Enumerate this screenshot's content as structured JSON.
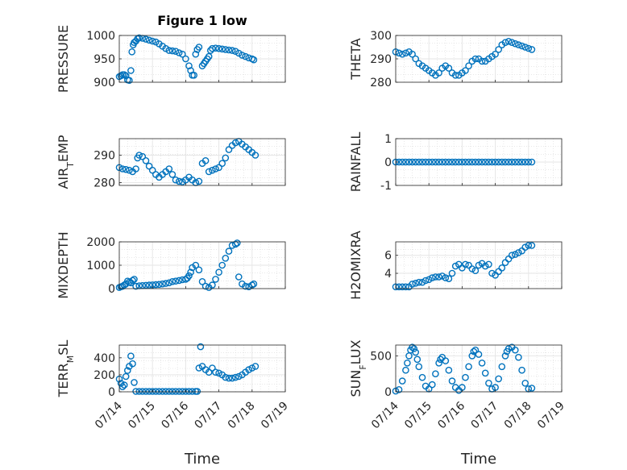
{
  "figure": {
    "title": "Figure 1 low",
    "xlabel": "Time"
  },
  "colors": {
    "marker": "#0072BD",
    "axis": "#262626",
    "grid": "#e6e6e6",
    "minor_grid": "#d9d9d9"
  },
  "chart_data": [
    {
      "type": "scatter",
      "ylabel": "PRESSURE",
      "xlim": [
        "07/14",
        "07/19"
      ],
      "ylim": [
        900,
        1000
      ],
      "yticks": [
        900,
        950,
        1000
      ],
      "x": [
        0.0,
        0.05,
        0.1,
        0.15,
        0.2,
        0.25,
        0.3,
        0.35,
        0.38,
        0.42,
        0.45,
        0.5,
        0.55,
        0.6,
        0.7,
        0.8,
        0.9,
        1.0,
        1.1,
        1.2,
        1.3,
        1.4,
        1.5,
        1.6,
        1.7,
        1.8,
        1.9,
        2.0,
        2.1,
        2.15,
        2.2,
        2.25,
        2.3,
        2.35,
        2.4,
        2.5,
        2.55,
        2.6,
        2.65,
        2.7,
        2.75,
        2.8,
        2.9,
        3.0,
        3.1,
        3.2,
        3.3,
        3.4,
        3.5,
        3.6,
        3.7,
        3.8,
        3.9,
        4.0,
        4.05
      ],
      "y": [
        912,
        914,
        916,
        916,
        914,
        905,
        904,
        925,
        965,
        980,
        985,
        988,
        993,
        995,
        994,
        992,
        990,
        988,
        986,
        982,
        977,
        972,
        968,
        967,
        966,
        963,
        960,
        950,
        935,
        925,
        915,
        915,
        960,
        970,
        975,
        935,
        940,
        945,
        950,
        955,
        968,
        972,
        973,
        972,
        971,
        970,
        969,
        968,
        966,
        962,
        958,
        955,
        952,
        950,
        948
      ]
    },
    {
      "type": "scatter",
      "ylabel": "THETA",
      "xlim": [
        "07/14",
        "07/19"
      ],
      "ylim": [
        280,
        300
      ],
      "yticks": [
        280,
        290,
        300
      ],
      "x": [
        0.0,
        0.1,
        0.2,
        0.3,
        0.4,
        0.5,
        0.6,
        0.7,
        0.8,
        0.9,
        1.0,
        1.1,
        1.2,
        1.3,
        1.4,
        1.5,
        1.6,
        1.7,
        1.8,
        1.9,
        2.0,
        2.1,
        2.2,
        2.3,
        2.4,
        2.5,
        2.6,
        2.7,
        2.8,
        2.9,
        3.0,
        3.1,
        3.2,
        3.3,
        3.4,
        3.5,
        3.6,
        3.7,
        3.8,
        3.9,
        4.0,
        4.1
      ],
      "y": [
        293,
        292.5,
        292,
        292.5,
        293,
        292,
        290,
        288,
        287,
        286,
        285,
        284,
        283,
        284,
        286,
        287,
        286,
        284,
        283,
        283,
        284,
        285,
        287,
        289,
        290,
        290,
        289,
        289,
        290,
        291,
        292,
        294,
        296,
        297,
        297.5,
        297,
        296.5,
        296,
        295.5,
        295,
        294.5,
        294
      ]
    },
    {
      "type": "scatter",
      "ylabel": "AIR_TEMP",
      "xlim": [
        "07/14",
        "07/19"
      ],
      "ylim": [
        279,
        296
      ],
      "yticks": [
        280,
        290
      ],
      "x": [
        0.0,
        0.1,
        0.2,
        0.3,
        0.4,
        0.5,
        0.55,
        0.6,
        0.7,
        0.8,
        0.9,
        1.0,
        1.1,
        1.2,
        1.3,
        1.4,
        1.5,
        1.6,
        1.7,
        1.8,
        1.9,
        2.0,
        2.1,
        2.2,
        2.3,
        2.4,
        2.5,
        2.6,
        2.7,
        2.8,
        2.9,
        3.0,
        3.1,
        3.2,
        3.3,
        3.4,
        3.5,
        3.6,
        3.7,
        3.8,
        3.9,
        4.0,
        4.1
      ],
      "y": [
        285.5,
        285,
        284.8,
        284.5,
        284,
        285,
        289,
        290,
        289.5,
        288,
        286,
        284.5,
        283,
        282,
        283,
        284,
        285,
        283,
        281,
        280.5,
        280.3,
        281,
        282,
        281,
        280,
        280.5,
        287,
        288,
        284,
        284.5,
        285,
        285.5,
        287,
        289,
        292,
        293.5,
        294.5,
        295,
        294,
        293,
        292,
        291,
        290
      ]
    },
    {
      "type": "scatter",
      "ylabel": "RAINFALL",
      "xlim": [
        "07/14",
        "07/19"
      ],
      "ylim": [
        -1,
        1
      ],
      "yticks": [
        -1,
        0,
        1
      ],
      "x": [
        0.0,
        0.1,
        0.2,
        0.3,
        0.4,
        0.5,
        0.6,
        0.7,
        0.8,
        0.9,
        1.0,
        1.1,
        1.2,
        1.3,
        1.4,
        1.5,
        1.6,
        1.7,
        1.8,
        1.9,
        2.0,
        2.1,
        2.2,
        2.3,
        2.4,
        2.5,
        2.6,
        2.7,
        2.8,
        2.9,
        3.0,
        3.1,
        3.2,
        3.3,
        3.4,
        3.5,
        3.6,
        3.7,
        3.8,
        3.9,
        4.0,
        4.1
      ],
      "y": [
        0,
        0,
        0,
        0,
        0,
        0,
        0,
        0,
        0,
        0,
        0,
        0,
        0,
        0,
        0,
        0,
        0,
        0,
        0,
        0,
        0,
        0,
        0,
        0,
        0,
        0,
        0,
        0,
        0,
        0,
        0,
        0,
        0,
        0,
        0,
        0,
        0,
        0,
        0,
        0,
        0,
        0
      ]
    },
    {
      "type": "scatter",
      "ylabel": "MIXDEPTH",
      "xlim": [
        "07/14",
        "07/19"
      ],
      "ylim": [
        0,
        2000
      ],
      "yticks": [
        0,
        1000,
        2000
      ],
      "x": [
        0.0,
        0.05,
        0.1,
        0.15,
        0.2,
        0.25,
        0.3,
        0.35,
        0.4,
        0.45,
        0.5,
        0.6,
        0.7,
        0.8,
        0.9,
        1.0,
        1.1,
        1.2,
        1.3,
        1.4,
        1.5,
        1.6,
        1.7,
        1.8,
        1.9,
        2.0,
        2.05,
        2.1,
        2.15,
        2.2,
        2.3,
        2.4,
        2.5,
        2.6,
        2.7,
        2.8,
        2.9,
        3.0,
        3.1,
        3.2,
        3.3,
        3.4,
        3.5,
        3.55,
        3.6,
        3.7,
        3.8,
        3.9,
        4.0,
        4.05
      ],
      "y": [
        50,
        80,
        100,
        150,
        200,
        320,
        280,
        250,
        350,
        400,
        100,
        120,
        130,
        140,
        150,
        160,
        170,
        180,
        200,
        220,
        250,
        300,
        320,
        350,
        380,
        400,
        450,
        550,
        700,
        900,
        1000,
        800,
        300,
        100,
        50,
        150,
        400,
        700,
        1000,
        1300,
        1600,
        1850,
        1900,
        1950,
        500,
        200,
        100,
        80,
        150,
        200
      ]
    },
    {
      "type": "scatter",
      "ylabel": "H2OMIXRA",
      "xlim": [
        "07/14",
        "07/19"
      ],
      "ylim": [
        2.3,
        7.5
      ],
      "yticks": [
        4,
        6
      ],
      "x": [
        0.0,
        0.1,
        0.2,
        0.3,
        0.4,
        0.5,
        0.6,
        0.7,
        0.8,
        0.9,
        1.0,
        1.1,
        1.2,
        1.3,
        1.4,
        1.5,
        1.6,
        1.7,
        1.8,
        1.9,
        2.0,
        2.1,
        2.2,
        2.3,
        2.4,
        2.5,
        2.6,
        2.7,
        2.8,
        2.9,
        3.0,
        3.1,
        3.2,
        3.3,
        3.4,
        3.5,
        3.6,
        3.7,
        3.8,
        3.9,
        4.0,
        4.1
      ],
      "y": [
        2.5,
        2.5,
        2.5,
        2.5,
        2.5,
        2.8,
        2.9,
        3.0,
        3.0,
        3.2,
        3.3,
        3.5,
        3.6,
        3.6,
        3.7,
        3.5,
        3.4,
        4.0,
        4.8,
        5.0,
        4.6,
        5.0,
        4.9,
        4.5,
        4.3,
        4.9,
        5.1,
        4.8,
        5.0,
        4.0,
        3.8,
        4.2,
        4.6,
        5.2,
        5.6,
        6.0,
        6.1,
        6.3,
        6.5,
        6.9,
        7.1,
        7.1
      ]
    },
    {
      "type": "scatter",
      "ylabel": "TERR_MSL",
      "xlim": [
        "07/14",
        "07/19"
      ],
      "ylim": [
        0,
        550
      ],
      "yticks": [
        0,
        200,
        400
      ],
      "x": [
        0.0,
        0.05,
        0.1,
        0.15,
        0.2,
        0.25,
        0.3,
        0.35,
        0.4,
        0.45,
        0.5,
        0.6,
        0.7,
        0.8,
        0.9,
        1.0,
        1.1,
        1.2,
        1.3,
        1.4,
        1.5,
        1.6,
        1.7,
        1.8,
        1.9,
        2.0,
        2.1,
        2.2,
        2.3,
        2.35,
        2.4,
        2.45,
        2.5,
        2.6,
        2.7,
        2.8,
        2.9,
        3.0,
        3.1,
        3.2,
        3.3,
        3.4,
        3.5,
        3.6,
        3.7,
        3.8,
        3.9,
        4.0,
        4.1
      ],
      "y": [
        150,
        100,
        60,
        80,
        180,
        250,
        300,
        420,
        330,
        110,
        5,
        5,
        5,
        5,
        5,
        5,
        5,
        5,
        5,
        5,
        5,
        5,
        5,
        5,
        5,
        5,
        5,
        5,
        5,
        5,
        280,
        530,
        300,
        260,
        230,
        280,
        230,
        220,
        200,
        170,
        160,
        160,
        170,
        180,
        200,
        230,
        260,
        280,
        300
      ]
    },
    {
      "type": "scatter",
      "ylabel": "SUN_FLUX",
      "xlim": [
        "07/14",
        "07/19"
      ],
      "ylim": [
        0,
        650
      ],
      "yticks": [
        0,
        500
      ],
      "x": [
        0.0,
        0.1,
        0.2,
        0.3,
        0.35,
        0.4,
        0.45,
        0.5,
        0.55,
        0.6,
        0.65,
        0.7,
        0.8,
        0.9,
        1.0,
        1.1,
        1.2,
        1.3,
        1.35,
        1.4,
        1.5,
        1.6,
        1.7,
        1.8,
        1.9,
        2.0,
        2.1,
        2.2,
        2.3,
        2.35,
        2.4,
        2.5,
        2.6,
        2.7,
        2.8,
        2.9,
        3.0,
        3.1,
        3.2,
        3.3,
        3.35,
        3.4,
        3.5,
        3.6,
        3.7,
        3.8,
        3.9,
        4.0,
        4.1
      ],
      "y": [
        10,
        30,
        150,
        300,
        400,
        500,
        580,
        620,
        600,
        550,
        450,
        350,
        200,
        80,
        40,
        100,
        250,
        400,
        450,
        480,
        430,
        300,
        150,
        60,
        20,
        60,
        200,
        350,
        500,
        560,
        580,
        520,
        400,
        260,
        120,
        40,
        60,
        180,
        350,
        500,
        560,
        600,
        620,
        580,
        480,
        300,
        120,
        40,
        50
      ]
    }
  ],
  "xticks": [
    "07/14",
    "07/15",
    "07/16",
    "07/17",
    "07/18",
    "07/19"
  ]
}
